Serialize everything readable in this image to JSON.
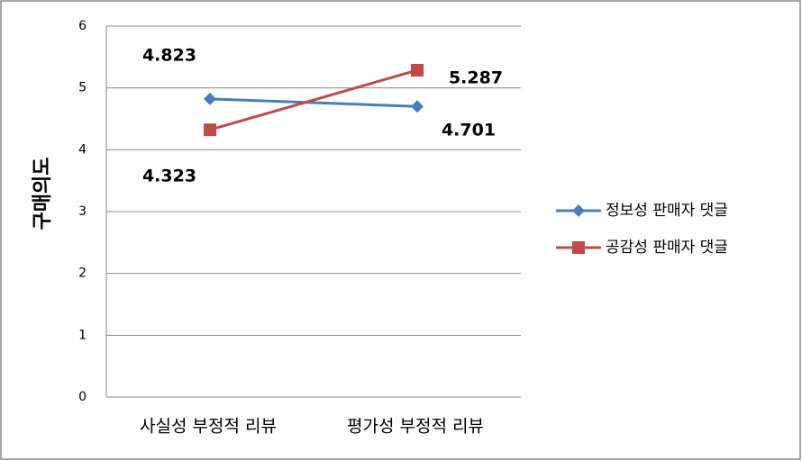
{
  "chart_data": {
    "type": "line",
    "y_label": "구매의도",
    "categories": [
      "사실성 부정적 리뷰",
      "평가성 부정적 리뷰"
    ],
    "series": [
      {
        "name": "정보성 판매자 댓글",
        "color": "#4a7ebb",
        "marker": "diamond",
        "values": [
          4.823,
          4.701
        ]
      },
      {
        "name": "공감성 판매자 댓글",
        "color": "#be4b48",
        "marker": "square",
        "values": [
          4.323,
          5.287
        ]
      }
    ],
    "ylim": [
      0,
      6
    ],
    "yticks": [
      0,
      1,
      2,
      3,
      4,
      5,
      6
    ],
    "grid": true,
    "legend": "right"
  }
}
